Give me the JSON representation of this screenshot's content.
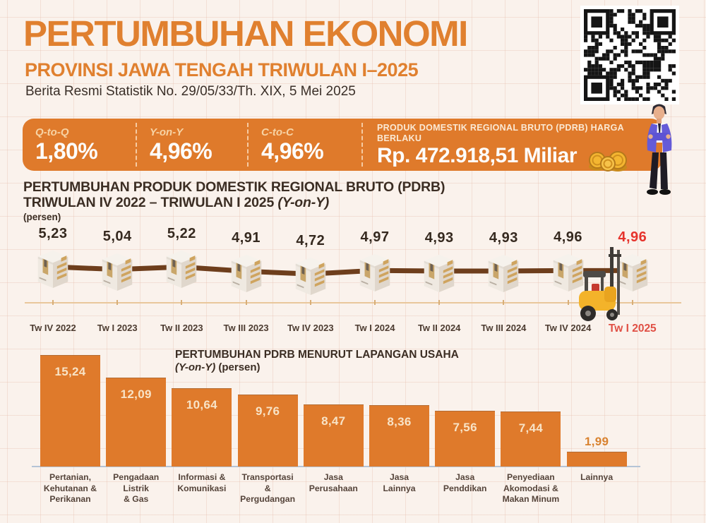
{
  "page": {
    "title": "PERTUMBUHAN EKONOMI",
    "subtitle": "PROVINSI JAWA TENGAH TRIWULAN I–2025",
    "release_info": "Berita Resmi Statistik No. 29/05/33/Th. XIX, 5 Mei 2025"
  },
  "summary_banner": {
    "stats": [
      {
        "label": "Q-to-Q",
        "value": "1,80%"
      },
      {
        "label": "Y-on-Y",
        "value": "4,96%"
      },
      {
        "label": "C-to-C",
        "value": "4,96%"
      }
    ],
    "pdrb": {
      "label": "PRODUK DOMESTIK REGIONAL BRUTO (PDRB) HARGA BERLAKU",
      "value": "Rp. 472.918,51 Miliar"
    }
  },
  "line_section": {
    "heading_line1": "PERTUMBUHAN PRODUK DOMESTIK REGIONAL BRUTO (PDRB)",
    "heading_line2": "TRIWULAN IV 2022 – TRIWULAN I 2025 ",
    "heading_line2_suffix": "(Y-on-Y)",
    "unit": "(persen)"
  },
  "bar_section": {
    "title": "PERTUMBUHAN PDRB MENURUT LAPANGAN USAHA",
    "subtitle_italic": "(Y-on-Y)",
    "subtitle_bold": " (persen)"
  },
  "icons": [
    "qr-code",
    "gold-coins",
    "businessman-illustration",
    "package-box",
    "forklift"
  ],
  "colors": {
    "orange": "#DF7A2B",
    "title_orange": "#E0802F",
    "red_value": "#E6332C",
    "red_label": "#E05045",
    "wire_brown": "#6E3E1C",
    "dark_text": "#3B2D23"
  },
  "chart_data": [
    {
      "type": "line",
      "title": "PERTUMBUHAN PRODUK DOMESTIK REGIONAL BRUTO (PDRB) TRIWULAN IV 2022 – TRIWULAN I 2025 (Y-on-Y)",
      "ylabel": "persen",
      "categories": [
        "Tw IV 2022",
        "Tw I 2023",
        "Tw II 2023",
        "Tw III 2023",
        "Tw IV 2023",
        "Tw I 2024",
        "Tw II 2024",
        "Tw III 2024",
        "Tw IV 2024",
        "Tw I 2025"
      ],
      "values": [
        5.23,
        5.04,
        5.22,
        4.91,
        4.72,
        4.97,
        4.93,
        4.93,
        4.96,
        4.96
      ],
      "value_labels": [
        "5,23",
        "5,04",
        "5,22",
        "4,91",
        "4,72",
        "4,97",
        "4,93",
        "4,93",
        "4,96",
        "4,96"
      ],
      "highlight_index": 9,
      "marker": "package-box",
      "legend_position": "none",
      "grid": false
    },
    {
      "type": "bar",
      "title": "PERTUMBUHAN PDRB MENURUT LAPANGAN USAHA",
      "subtitle": "(Y-on-Y) (persen)",
      "categories": [
        "Pertanian,\nKehutanan &\nPerikanan",
        "Pengadaan\nListrik\n& Gas",
        "Informasi &\nKomunikasi",
        "Transportasi\n&\nPergudangan",
        "Jasa\nPerusahaan",
        "Jasa\nLainnya",
        "Jasa\nPenddikan",
        "Penyediaan\nAkomodasi &\nMakan Minum",
        "Lainnya"
      ],
      "values": [
        15.24,
        12.09,
        10.64,
        9.76,
        8.47,
        8.36,
        7.56,
        7.44,
        1.99
      ],
      "value_labels": [
        "15,24",
        "12,09",
        "10,64",
        "9,76",
        "8,47",
        "8,36",
        "7,56",
        "7,44",
        "1,99"
      ],
      "bar_color": "#DF7A2B",
      "ylim": [
        0,
        16
      ],
      "grid": false,
      "legend_position": "none"
    }
  ]
}
